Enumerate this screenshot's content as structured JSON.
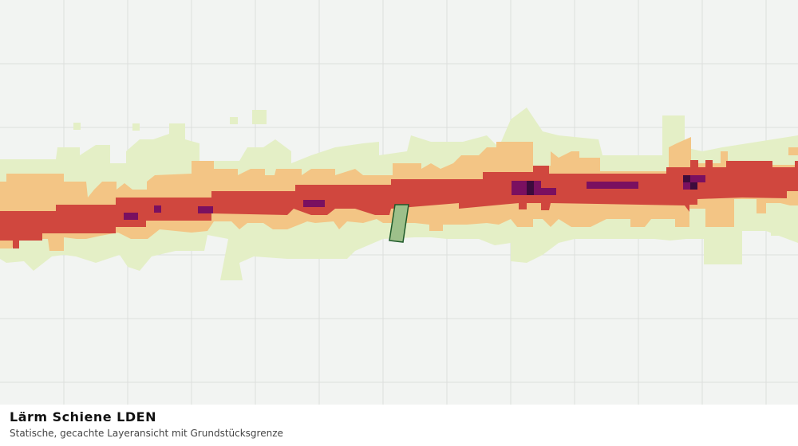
{
  "map": {
    "title": "Lärm Schiene LDEN",
    "subtitle": "Statische, gecachte Layeransicht mit Grundstücksgrenze"
  }
}
